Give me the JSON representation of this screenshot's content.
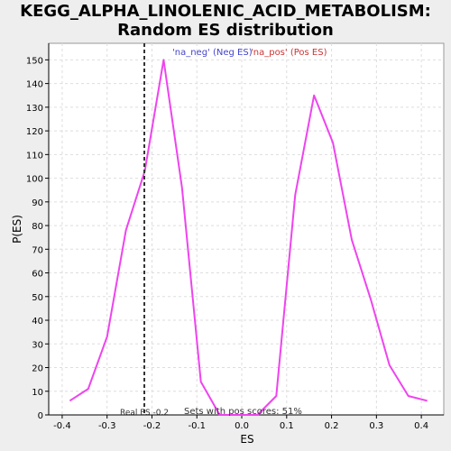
{
  "title": {
    "line1": "KEGG_ALPHA_LINOLENIC_ACID_METABOLISM:",
    "line2": "Random ES distribution"
  },
  "colors": {
    "background": "#eeeeee",
    "plot_background": "#ffffff",
    "line": "#ee44ee",
    "grid": "#dddddd",
    "neg_label": "#4444cc",
    "pos_label": "#cc3333",
    "real_es_line": "#333333"
  },
  "chart_data": {
    "type": "line",
    "xlabel": "ES",
    "ylabel": "P(ES)",
    "xlim": [
      -0.43,
      0.45
    ],
    "ylim": [
      0,
      157
    ],
    "xticks": [
      -0.4,
      -0.3,
      -0.2,
      -0.1,
      0.0,
      0.1,
      0.2,
      0.3,
      0.4
    ],
    "xtick_labels": [
      "-0.4",
      "-0.3",
      "-0.2",
      "-0.1",
      "0.0",
      "0.1",
      "0.2",
      "0.3",
      "0.4"
    ],
    "yticks": [
      0,
      10,
      20,
      30,
      40,
      50,
      60,
      70,
      80,
      90,
      100,
      110,
      120,
      130,
      140,
      150
    ],
    "grid": true,
    "legend": [
      {
        "label": "'na_neg' (Neg ES)",
        "color": "#4444cc"
      },
      {
        "label": "'na_pos' (Pos ES)",
        "color": "#cc3333"
      }
    ],
    "series": [
      {
        "x": [
          -0.383,
          -0.342,
          -0.3,
          -0.258,
          -0.216,
          -0.174,
          -0.133,
          -0.091,
          -0.049,
          0.0,
          0.035,
          0.077,
          0.119,
          0.161,
          0.203,
          0.245,
          0.287,
          0.329,
          0.371,
          0.413
        ],
        "y": [
          6,
          11,
          33,
          78,
          103,
          150,
          96,
          14,
          0,
          0,
          0,
          8,
          93,
          135,
          115,
          74,
          49,
          21,
          8,
          6
        ]
      }
    ],
    "real_es": -0.217,
    "annotations": {
      "real_es": "Real ES -0.2",
      "pos_scores": "Sets with pos scores: 51%"
    }
  }
}
